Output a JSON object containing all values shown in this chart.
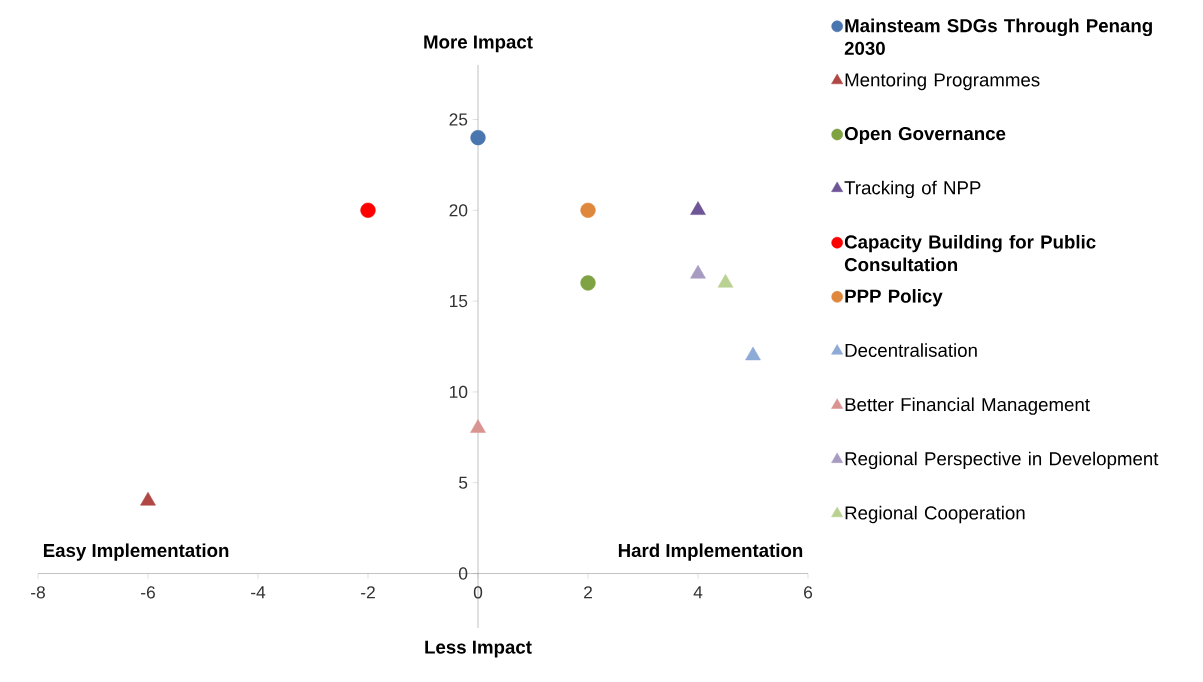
{
  "chart_data": {
    "type": "scatter",
    "xlim": [
      -8,
      6
    ],
    "xticks": [
      -8,
      -6,
      -4,
      -2,
      0,
      2,
      4,
      6
    ],
    "ylim": [
      -3,
      28
    ],
    "yticks": [
      0,
      5,
      10,
      15,
      20,
      25
    ],
    "grid": false,
    "legend": "right",
    "annotations": [
      "More Impact",
      "Less Impact",
      "Easy Implementation",
      "Hard Implementation"
    ],
    "series": [
      {
        "name": "**Mainsteam SDGs Through Penang 2030**",
        "color": "#4a76b0",
        "marker": "circle",
        "x": [
          0
        ],
        "values": [
          24
        ]
      },
      {
        "name": "Mentoring Programmes",
        "color": "#b04744",
        "marker": "triangle",
        "x": [
          -6
        ],
        "values": [
          4
        ]
      },
      {
        "name": "**Open Governance**",
        "color": "#7fa242",
        "marker": "circle",
        "x": [
          2
        ],
        "values": [
          16
        ]
      },
      {
        "name": "Tracking of NPP",
        "color": "#6e5596",
        "marker": "triangle",
        "x": [
          4
        ],
        "values": [
          20
        ]
      },
      {
        "name": "**Capacity Building for Public Consultation**",
        "color": "#ff0000",
        "marker": "circle",
        "x": [
          -2
        ],
        "values": [
          20
        ]
      },
      {
        "name": "**PPP Policy**",
        "color": "#e0873e",
        "marker": "circle",
        "x": [
          2
        ],
        "values": [
          20
        ]
      },
      {
        "name": "Decentralisation",
        "color": "#8eaad6",
        "marker": "triangle",
        "x": [
          5
        ],
        "values": [
          12
        ]
      },
      {
        "name": "Better Financial Management",
        "color": "#d99492",
        "marker": "triangle",
        "x": [
          0
        ],
        "values": [
          8
        ]
      },
      {
        "name": "Regional Perspective in Development",
        "color": "#a89bc2",
        "marker": "triangle",
        "x": [
          4
        ],
        "values": [
          16.5
        ]
      },
      {
        "name": "Regional Cooperation",
        "color": "#b9d291",
        "marker": "triangle",
        "x": [
          4.5
        ],
        "values": [
          16
        ]
      }
    ]
  }
}
